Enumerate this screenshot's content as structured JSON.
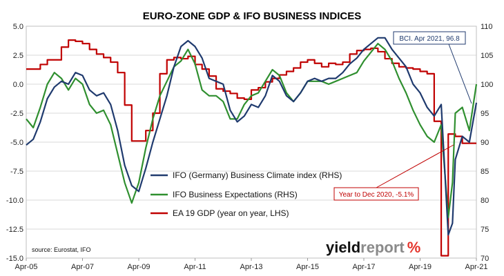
{
  "chart_data": {
    "type": "line",
    "title": "EURO-ZONE GDP & IFO BUSINESS INDICES",
    "x_labels": [
      "Apr-05",
      "Apr-07",
      "Apr-09",
      "Apr-11",
      "Apr-13",
      "Apr-15",
      "Apr-17",
      "Apr-19",
      "Apr-21"
    ],
    "left_axis": {
      "ticks": [
        "5.0",
        "2.5",
        "0.0",
        "-2.5",
        "-5.0",
        "-7.5",
        "-10.0",
        "-12.5",
        "-15.0"
      ],
      "ylim": [
        -15,
        5
      ]
    },
    "right_axis": {
      "ticks": [
        "110",
        "105",
        "100",
        "95",
        "90",
        "85",
        "80",
        "75",
        "70"
      ],
      "ylim": [
        70,
        110
      ]
    },
    "grid": true,
    "legend": [
      {
        "name": "IFO (Germany) Business Climate index (RHS)",
        "color": "#1f3a6e"
      },
      {
        "name": "IFO Business Expectations (RHS)",
        "color": "#2f8f2f"
      },
      {
        "name": "EA 19 GDP (year on year, LHS)",
        "color": "#c00000"
      }
    ],
    "series": [
      {
        "name": "IFO (Germany) Business Climate index (RHS)",
        "axis": "right",
        "color": "#1f3a6e",
        "x": [
          2005.25,
          2005.5,
          2005.75,
          2006.0,
          2006.25,
          2006.5,
          2006.75,
          2007.0,
          2007.25,
          2007.5,
          2007.75,
          2008.0,
          2008.25,
          2008.5,
          2008.75,
          2009.0,
          2009.25,
          2009.5,
          2009.75,
          2010.0,
          2010.25,
          2010.5,
          2010.75,
          2011.0,
          2011.25,
          2011.5,
          2011.75,
          2012.0,
          2012.25,
          2012.5,
          2012.75,
          2013.0,
          2013.25,
          2013.5,
          2013.75,
          2014.0,
          2014.25,
          2014.5,
          2014.75,
          2015.0,
          2015.25,
          2015.5,
          2015.75,
          2016.0,
          2016.25,
          2016.5,
          2016.75,
          2017.0,
          2017.25,
          2017.5,
          2017.75,
          2018.0,
          2018.25,
          2018.5,
          2018.75,
          2019.0,
          2019.25,
          2019.5,
          2019.75,
          2020.0,
          2020.25,
          2020.4,
          2020.5,
          2020.75,
          2021.0,
          2021.25
        ],
        "y": [
          89.5,
          90.5,
          93.5,
          97.5,
          99.5,
          100.5,
          100.0,
          102.0,
          101.5,
          99.0,
          98.0,
          98.5,
          96.5,
          92.0,
          86.0,
          82.5,
          81.5,
          85.5,
          90.0,
          94.0,
          98.0,
          103.0,
          106.5,
          107.5,
          106.5,
          104.5,
          101.0,
          100.5,
          100.0,
          95.5,
          93.5,
          94.5,
          96.5,
          96.0,
          98.0,
          101.5,
          100.5,
          98.0,
          97.0,
          98.5,
          100.5,
          101.0,
          100.5,
          101.0,
          101.0,
          102.0,
          103.5,
          104.5,
          106.0,
          107.0,
          108.0,
          108.0,
          106.0,
          104.5,
          103.0,
          100.0,
          98.5,
          96.0,
          94.5,
          96.5,
          74.0,
          76.0,
          87.0,
          91.0,
          90.0,
          96.8
        ]
      },
      {
        "name": "IFO Business Expectations (RHS)",
        "axis": "right",
        "color": "#2f8f2f",
        "x": [
          2005.25,
          2005.5,
          2005.75,
          2006.0,
          2006.25,
          2006.5,
          2006.75,
          2007.0,
          2007.25,
          2007.5,
          2007.75,
          2008.0,
          2008.25,
          2008.5,
          2008.75,
          2009.0,
          2009.25,
          2009.5,
          2009.75,
          2010.0,
          2010.25,
          2010.5,
          2010.75,
          2011.0,
          2011.25,
          2011.5,
          2011.75,
          2012.0,
          2012.25,
          2012.5,
          2012.75,
          2013.0,
          2013.25,
          2013.5,
          2013.75,
          2014.0,
          2014.25,
          2014.5,
          2014.75,
          2015.0,
          2015.25,
          2015.5,
          2015.75,
          2016.0,
          2016.25,
          2016.5,
          2016.75,
          2017.0,
          2017.25,
          2017.5,
          2017.75,
          2018.0,
          2018.25,
          2018.5,
          2018.75,
          2019.0,
          2019.25,
          2019.5,
          2019.75,
          2020.0,
          2020.25,
          2020.4,
          2020.5,
          2020.75,
          2021.0,
          2021.25
        ],
        "y": [
          94.0,
          92.5,
          96.0,
          100.0,
          102.0,
          101.0,
          99.0,
          101.0,
          100.0,
          96.5,
          95.0,
          95.5,
          93.0,
          88.0,
          83.0,
          79.5,
          83.0,
          89.0,
          94.0,
          98.0,
          100.5,
          103.0,
          104.0,
          106.0,
          103.5,
          99.0,
          98.0,
          98.0,
          97.0,
          94.0,
          94.0,
          96.5,
          98.0,
          98.5,
          100.5,
          102.5,
          101.5,
          98.5,
          97.0,
          98.5,
          100.5,
          100.5,
          100.5,
          100.0,
          100.5,
          101.0,
          101.5,
          102.0,
          104.0,
          105.5,
          107.0,
          106.0,
          104.0,
          101.0,
          98.5,
          95.5,
          93.0,
          91.0,
          90.0,
          93.0,
          77.0,
          83.0,
          95.0,
          96.0,
          92.0,
          100.0
        ]
      },
      {
        "name": "EA 19 GDP (year on year, LHS)",
        "axis": "left",
        "color": "#c00000",
        "x": [
          2005.25,
          2005.75,
          2006.0,
          2006.5,
          2006.75,
          2007.0,
          2007.25,
          2007.5,
          2007.75,
          2008.0,
          2008.25,
          2008.5,
          2008.75,
          2009.0,
          2009.25,
          2009.5,
          2009.75,
          2010.0,
          2010.25,
          2010.5,
          2010.75,
          2011.0,
          2011.25,
          2011.5,
          2011.75,
          2012.0,
          2012.25,
          2012.5,
          2012.75,
          2013.0,
          2013.25,
          2013.5,
          2013.75,
          2014.0,
          2014.25,
          2014.5,
          2014.75,
          2015.0,
          2015.25,
          2015.5,
          2015.75,
          2016.0,
          2016.25,
          2016.5,
          2016.75,
          2017.0,
          2017.25,
          2017.5,
          2017.75,
          2018.0,
          2018.25,
          2018.5,
          2018.75,
          2019.0,
          2019.25,
          2019.5,
          2019.75,
          2020.0,
          2020.25,
          2020.5,
          2020.75,
          2021.0
        ],
        "y": [
          1.3,
          1.7,
          2.1,
          3.2,
          3.8,
          3.7,
          3.5,
          3.0,
          2.6,
          2.3,
          1.9,
          1.0,
          -1.8,
          -4.9,
          -4.9,
          -4.0,
          -2.5,
          0.9,
          2.1,
          2.3,
          2.2,
          2.4,
          1.7,
          1.3,
          0.7,
          -0.4,
          -0.6,
          -0.8,
          -1.2,
          -1.3,
          -0.5,
          -0.3,
          0.2,
          0.5,
          0.8,
          1.1,
          1.4,
          1.9,
          2.1,
          1.8,
          1.5,
          1.8,
          1.7,
          1.9,
          2.6,
          2.9,
          3.0,
          3.1,
          2.8,
          2.2,
          1.8,
          1.5,
          1.4,
          1.3,
          1.1,
          0.9,
          -3.2,
          -14.8,
          -4.3,
          -4.5,
          -5.1,
          -5.1
        ]
      }
    ],
    "annotations": [
      {
        "text": "BCI. Apr 2021, 96.8",
        "color": "#1f3a6e"
      },
      {
        "text": "Year to Dec 2020, -5.1%",
        "color": "#c00000"
      }
    ],
    "source": "source: Eurostat, IFO"
  },
  "brand": {
    "part1": "yield",
    "part2": "report",
    "part3": "%"
  }
}
